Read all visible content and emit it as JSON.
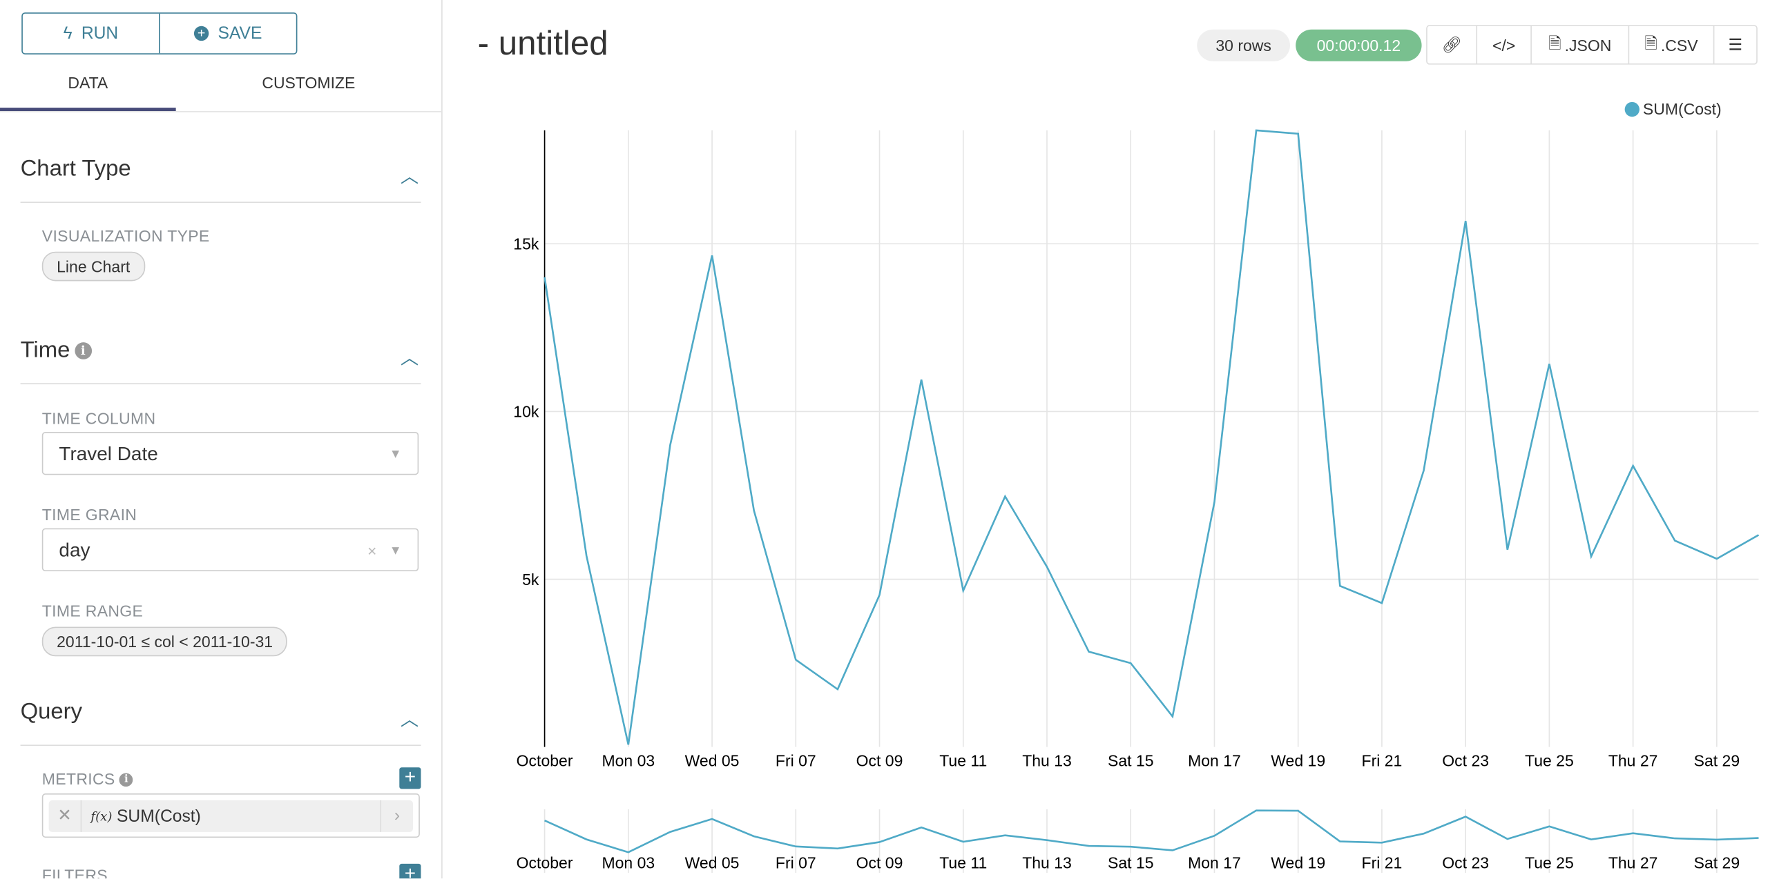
{
  "left_panel": {
    "run_label": "RUN",
    "save_label": "SAVE",
    "tabs": [
      "DATA",
      "CUSTOMIZE"
    ],
    "chart_type": {
      "title": "Chart Type",
      "viz_label": "VISUALIZATION TYPE",
      "viz_value": "Line Chart"
    },
    "time": {
      "title": "Time",
      "time_column_label": "TIME COLUMN",
      "time_column_value": "Travel Date",
      "time_grain_label": "TIME GRAIN",
      "time_grain_value": "day",
      "time_range_label": "TIME RANGE",
      "time_range_value": "2011-10-01 ≤ col < 2011-10-31"
    },
    "query": {
      "title": "Query",
      "metrics_label": "METRICS",
      "metric_value": "SUM(Cost)",
      "metric_fx": "f(x)",
      "filters_label": "FILTERS"
    }
  },
  "header": {
    "title": "- untitled",
    "rows_badge": "30 rows",
    "timer": "00:00:00.12",
    "json_label": ".JSON",
    "csv_label": ".CSV"
  },
  "colors": {
    "accent": "#3f7f96",
    "series": "#4faac7",
    "timer_bg": "#79c08f"
  },
  "chart_data": {
    "type": "line",
    "legend": [
      "SUM(Cost)"
    ],
    "legend_position": "top-right",
    "x": [
      "2011-10-01",
      "2011-10-02",
      "2011-10-03",
      "2011-10-04",
      "2011-10-05",
      "2011-10-06",
      "2011-10-07",
      "2011-10-08",
      "2011-10-09",
      "2011-10-10",
      "2011-10-11",
      "2011-10-12",
      "2011-10-13",
      "2011-10-14",
      "2011-10-15",
      "2011-10-16",
      "2011-10-17",
      "2011-10-18",
      "2011-10-19",
      "2011-10-20",
      "2011-10-21",
      "2011-10-22",
      "2011-10-23",
      "2011-10-24",
      "2011-10-25",
      "2011-10-26",
      "2011-10-27",
      "2011-10-28",
      "2011-10-29",
      "2011-10-30"
    ],
    "series": [
      {
        "name": "SUM(Cost)",
        "values": [
          14000,
          5700,
          70,
          9000,
          14650,
          7050,
          2600,
          1720,
          4530,
          10950,
          4660,
          7470,
          5370,
          2840,
          2500,
          910,
          7300,
          18380,
          18280,
          4800,
          4290,
          8240,
          15680,
          5880,
          11420,
          5680,
          8380,
          6150,
          5610,
          6320
        ]
      }
    ],
    "x_ticks": [
      "October",
      "Mon 03",
      "Wed 05",
      "Fri 07",
      "Oct 09",
      "Tue 11",
      "Thu 13",
      "Sat 15",
      "Mon 17",
      "Wed 19",
      "Fri 21",
      "Oct 23",
      "Tue 25",
      "Thu 27",
      "Sat 29"
    ],
    "y_ticks": [
      "5k",
      "10k",
      "15k"
    ],
    "y_tick_values": [
      5000,
      10000,
      15000
    ],
    "ylim": [
      0,
      18380
    ],
    "grid": true,
    "brush": true
  }
}
